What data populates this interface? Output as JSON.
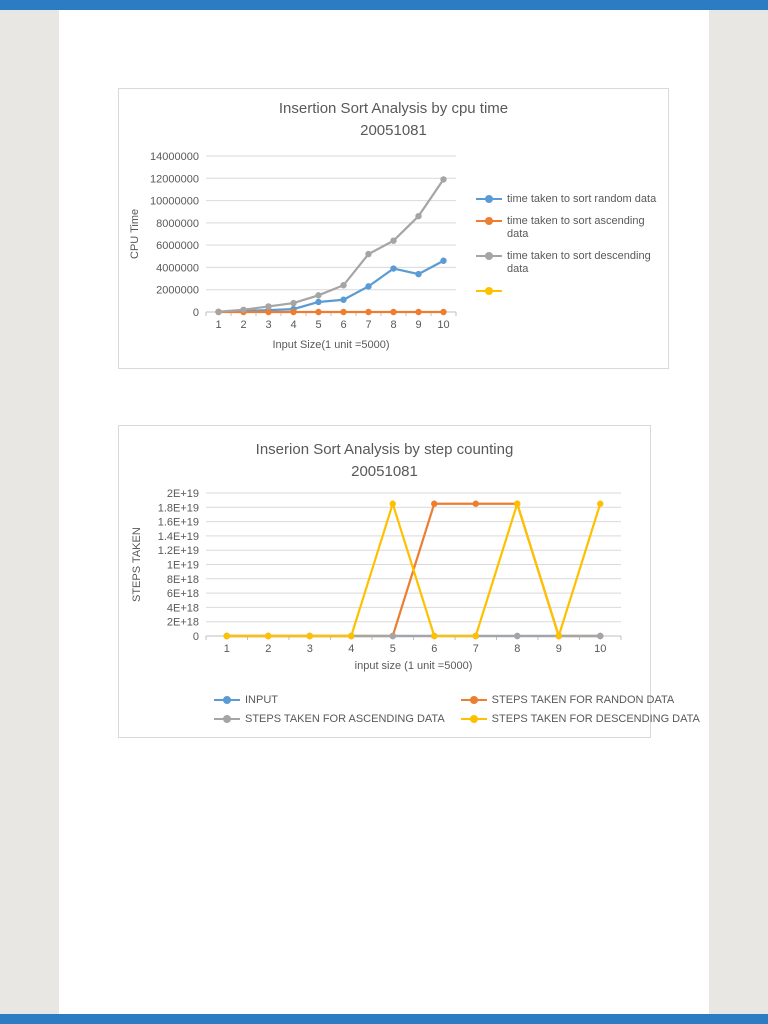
{
  "viewer": {
    "bar_color": "#2c7cc3",
    "background_color": "#e9e7e3",
    "page_color": "#ffffff"
  },
  "chart_data": [
    {
      "type": "line",
      "title": "Insertion Sort Analysis by cpu time",
      "subtitle": "20051081",
      "xlabel": "Input Size(1 unit =5000)",
      "ylabel": "CPU Time",
      "categories": [
        "1",
        "2",
        "3",
        "4",
        "5",
        "6",
        "7",
        "8",
        "9",
        "10"
      ],
      "ylim": [
        0,
        14000000
      ],
      "yticks": [
        0,
        2000000,
        4000000,
        6000000,
        8000000,
        10000000,
        12000000,
        14000000
      ],
      "ytick_labels": [
        "0",
        "2000000",
        "4000000",
        "6000000",
        "8000000",
        "10000000",
        "12000000",
        "14000000"
      ],
      "grid": true,
      "legend_position": "right",
      "series": [
        {
          "name": "time taken to sort random data",
          "color": "#5B9BD5",
          "values": [
            10000,
            90000,
            170000,
            260000,
            900000,
            1100000,
            2300000,
            3900000,
            3400000,
            4600000
          ]
        },
        {
          "name": "time taken to sort ascending data",
          "color": "#ED7D31",
          "values": [
            0,
            0,
            0,
            0,
            0,
            0,
            0,
            0,
            0,
            0
          ]
        },
        {
          "name": "time taken to sort descending data",
          "color": "#A5A5A5",
          "values": [
            20000,
            200000,
            500000,
            800000,
            1500000,
            2400000,
            5200000,
            6400000,
            8600000,
            11900000
          ]
        },
        {
          "name": "",
          "color": "#FFC000",
          "values": []
        }
      ]
    },
    {
      "type": "line",
      "title": "Inserion Sort Analysis by step counting",
      "subtitle": "20051081",
      "xlabel": "input size (1 unit =5000)",
      "ylabel": "STEPS TAKEN",
      "categories": [
        "1",
        "2",
        "3",
        "4",
        "5",
        "6",
        "7",
        "8",
        "9",
        "10"
      ],
      "ylim": [
        0,
        2e+19
      ],
      "yticks": [
        0,
        2e+18,
        4e+18,
        6e+18,
        8e+18,
        1e+19,
        1.2e+19,
        1.4e+19,
        1.6e+19,
        1.8e+19,
        2e+19
      ],
      "ytick_labels": [
        "0",
        "2E+18",
        "4E+18",
        "6E+18",
        "8E+18",
        "1E+19",
        "1.2E+19",
        "1.4E+19",
        "1.6E+19",
        "1.8E+19",
        "2E+19"
      ],
      "grid": true,
      "legend_position": "bottom",
      "series": [
        {
          "name": "INPUT",
          "color": "#5B9BD5",
          "values": [
            0,
            0,
            0,
            0,
            0,
            0,
            0,
            0,
            0,
            0
          ]
        },
        {
          "name": "STEPS TAKEN FOR RANDON DATA",
          "color": "#ED7D31",
          "values": [
            0,
            0,
            0,
            0,
            0,
            1.85e+19,
            1.85e+19,
            1.85e+19,
            0,
            0
          ]
        },
        {
          "name": "STEPS TAKEN FOR ASCENDING DATA",
          "color": "#A5A5A5",
          "values": [
            0,
            0,
            0,
            0,
            0,
            0,
            0,
            0,
            0,
            0
          ]
        },
        {
          "name": "STEPS TAKEN FOR DESCENDING DATA",
          "color": "#FFC000",
          "values": [
            0,
            0,
            0,
            0,
            1.85e+19,
            0,
            0,
            1.85e+19,
            0,
            1.85e+19
          ]
        }
      ]
    }
  ]
}
